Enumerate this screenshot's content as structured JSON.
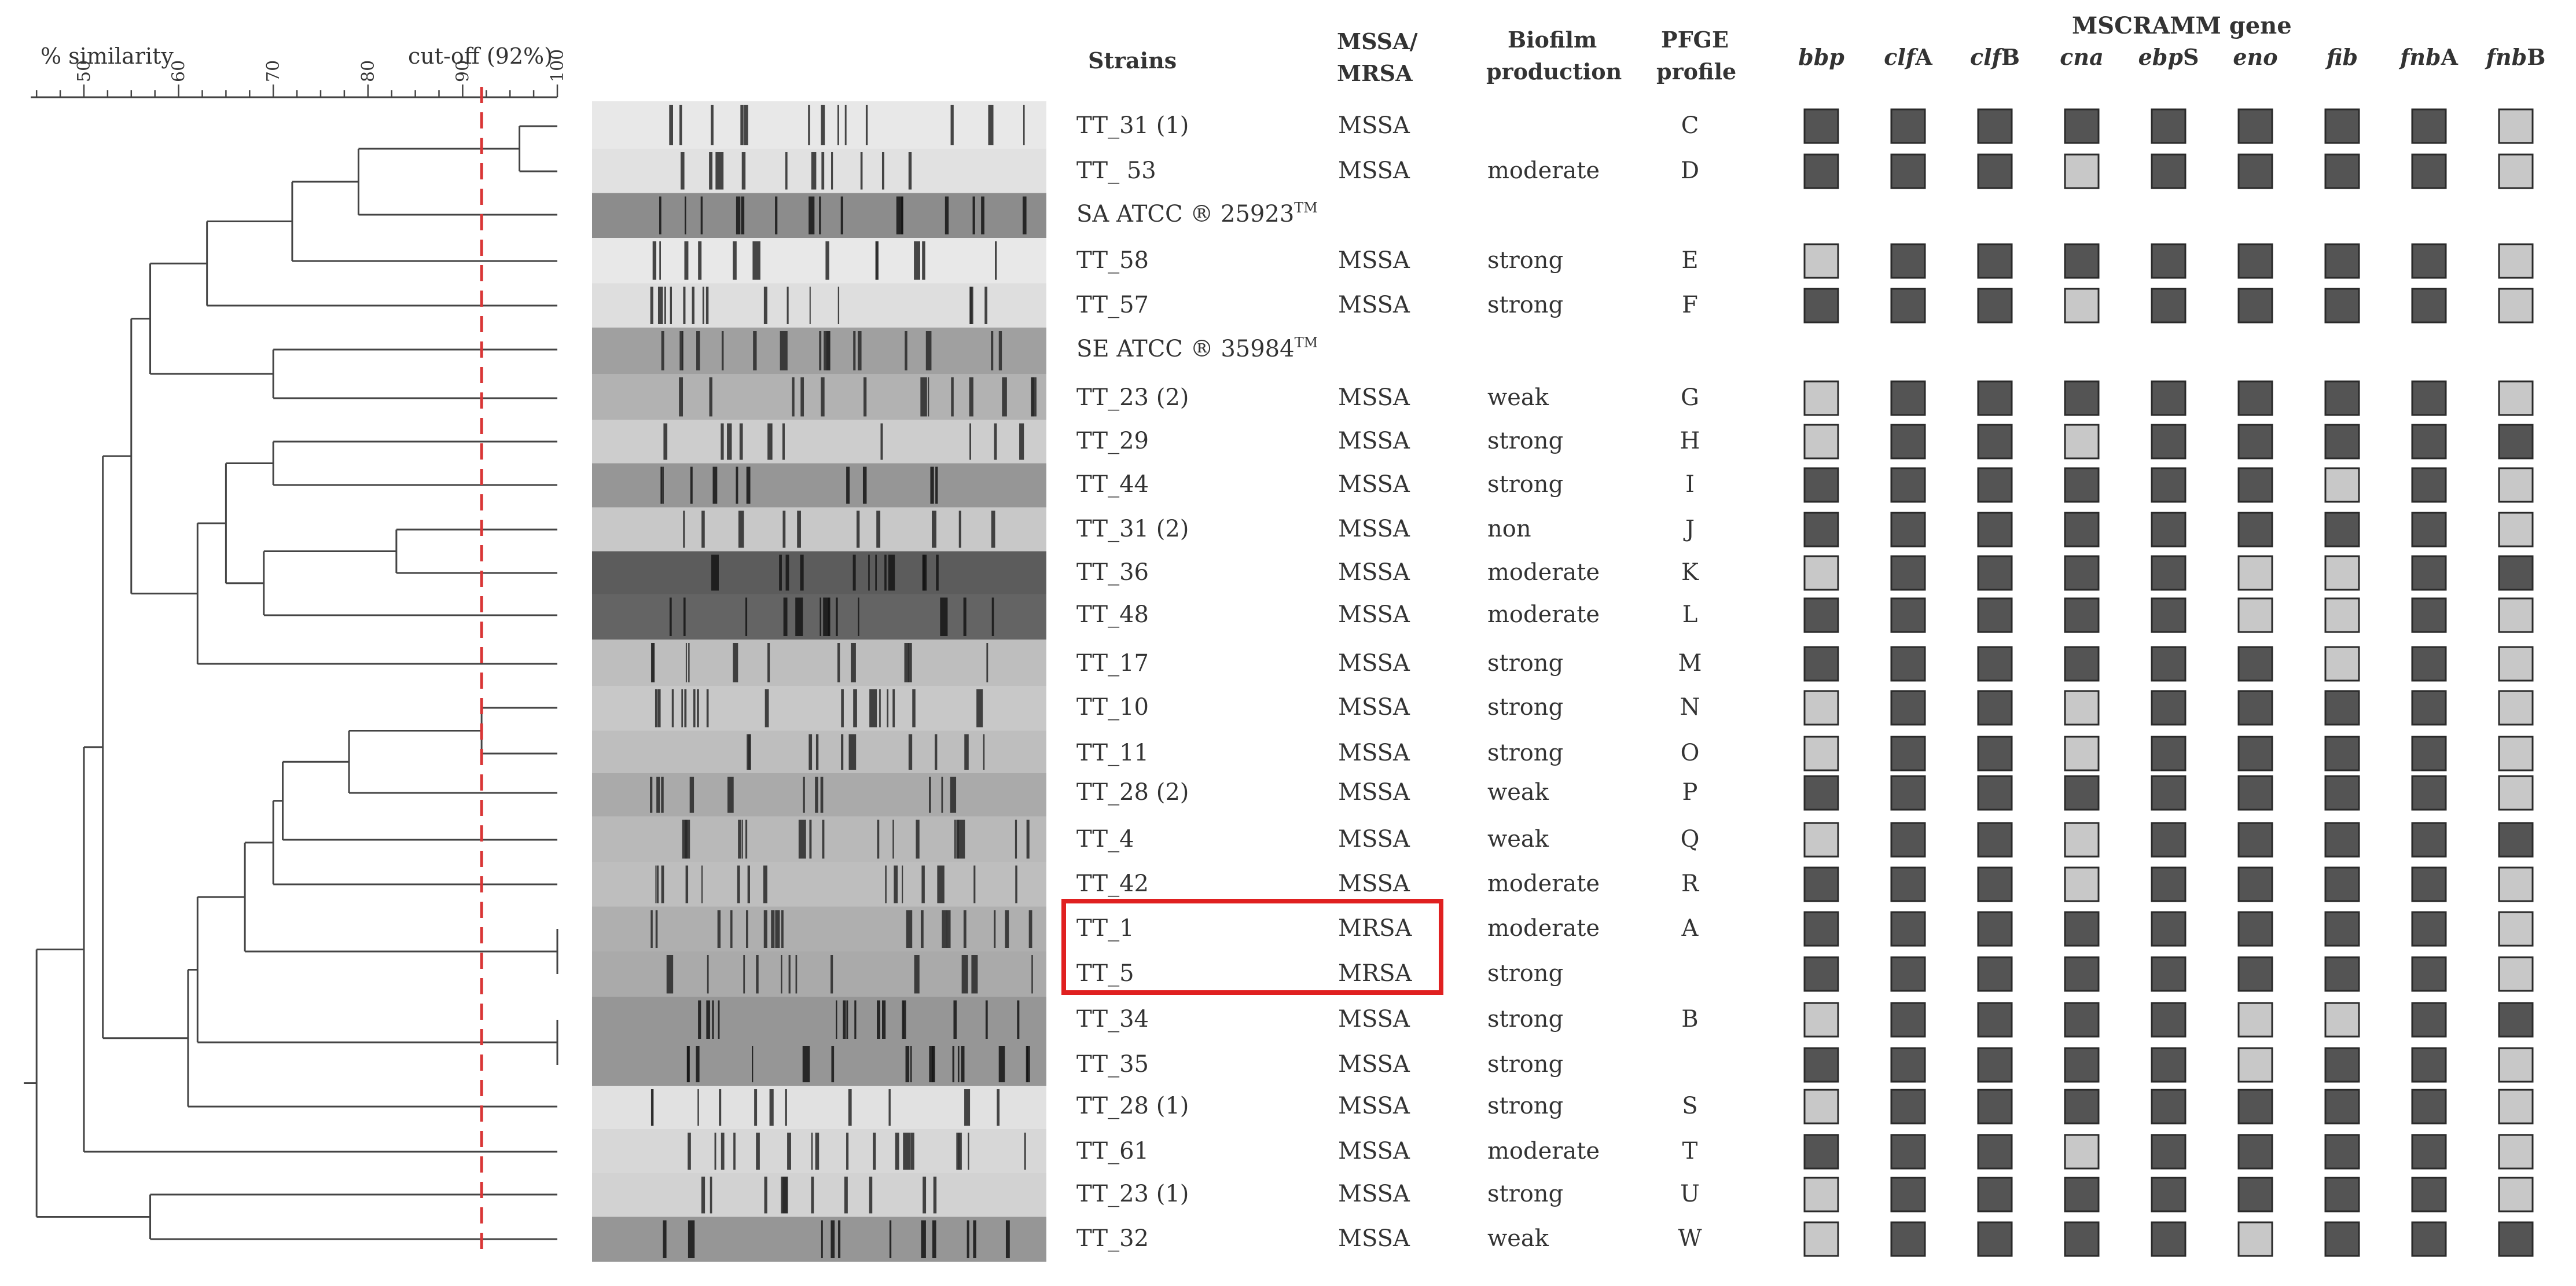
{
  "scale": {
    "label": "% similarity",
    "cutoff_label": "cut-off (92%)",
    "cutoff_value": 92,
    "min": 45,
    "max": 100,
    "ticks": [
      "50",
      "60",
      "70",
      "80",
      "90",
      "100"
    ]
  },
  "headers": {
    "strains": "Strains",
    "mssa_mrsa_1": "MSSA/",
    "mssa_mrsa_2": "MRSA",
    "biofilm_1": "Biofilm",
    "biofilm_2": "production",
    "pfge_1": "PFGE",
    "pfge_2": "profile",
    "mscramm": "MSCRAMM gene"
  },
  "genes": [
    {
      "italic": "bbp",
      "suffix": ""
    },
    {
      "italic": "clf",
      "suffix": "A"
    },
    {
      "italic": "clf",
      "suffix": "B"
    },
    {
      "italic": "cna",
      "suffix": ""
    },
    {
      "italic": "ebp",
      "suffix": "S"
    },
    {
      "italic": "eno",
      "suffix": ""
    },
    {
      "italic": "fib",
      "suffix": ""
    },
    {
      "italic": "fnb",
      "suffix": "A"
    },
    {
      "italic": "fnb",
      "suffix": "B"
    }
  ],
  "colors": {
    "present": "#545454",
    "absent": "#c8c8c8",
    "cutoff_line": "#d93636",
    "highlight_box": "#e02020",
    "dendrogram": "#444444"
  },
  "strains": [
    {
      "name": "TT_31 (1)",
      "type": "MSSA",
      "biofilm": "",
      "pfge": "C",
      "genes": [
        1,
        1,
        1,
        1,
        1,
        1,
        1,
        1,
        0
      ]
    },
    {
      "name": "TT_ 53",
      "type": "MSSA",
      "biofilm": "moderate",
      "pfge": "D",
      "genes": [
        1,
        1,
        1,
        0,
        1,
        1,
        1,
        1,
        0
      ]
    },
    {
      "name": "SA ATCC ® 25923",
      "sup": "TM",
      "type": "",
      "biofilm": "",
      "pfge": "",
      "genes": null
    },
    {
      "name": "TT_58",
      "type": "MSSA",
      "biofilm": "strong",
      "pfge": "E",
      "genes": [
        0,
        1,
        1,
        1,
        1,
        1,
        1,
        1,
        0
      ]
    },
    {
      "name": "TT_57",
      "type": "MSSA",
      "biofilm": "strong",
      "pfge": "F",
      "genes": [
        1,
        1,
        1,
        0,
        1,
        1,
        1,
        1,
        0
      ]
    },
    {
      "name": "SE ATCC ® 35984",
      "sup": "TM",
      "type": "",
      "biofilm": "",
      "pfge": "",
      "genes": null
    },
    {
      "name": "TT_23 (2)",
      "type": "MSSA",
      "biofilm": "weak",
      "pfge": "G",
      "genes": [
        0,
        1,
        1,
        1,
        1,
        1,
        1,
        1,
        0
      ]
    },
    {
      "name": "TT_29",
      "type": "MSSA",
      "biofilm": "strong",
      "pfge": "H",
      "genes": [
        0,
        1,
        1,
        0,
        1,
        1,
        1,
        1,
        1
      ]
    },
    {
      "name": "TT_44",
      "type": "MSSA",
      "biofilm": "strong",
      "pfge": "I",
      "genes": [
        1,
        1,
        1,
        1,
        1,
        1,
        0,
        1,
        0
      ]
    },
    {
      "name": "TT_31 (2)",
      "type": "MSSA",
      "biofilm": "non",
      "pfge": "J",
      "genes": [
        1,
        1,
        1,
        1,
        1,
        1,
        1,
        1,
        0
      ]
    },
    {
      "name": "TT_36",
      "type": "MSSA",
      "biofilm": "moderate",
      "pfge": "K",
      "genes": [
        0,
        1,
        1,
        1,
        1,
        0,
        0,
        1,
        1
      ]
    },
    {
      "name": "TT_48",
      "type": "MSSA",
      "biofilm": "moderate",
      "pfge": "L",
      "genes": [
        1,
        1,
        1,
        1,
        1,
        0,
        0,
        1,
        0
      ]
    },
    {
      "name": "TT_17",
      "type": "MSSA",
      "biofilm": "strong",
      "pfge": "M",
      "genes": [
        1,
        1,
        1,
        1,
        1,
        1,
        0,
        1,
        0
      ]
    },
    {
      "name": "TT_10",
      "type": "MSSA",
      "biofilm": "strong",
      "pfge": "N",
      "genes": [
        0,
        1,
        1,
        0,
        1,
        1,
        1,
        1,
        0
      ]
    },
    {
      "name": "TT_11",
      "type": "MSSA",
      "biofilm": "strong",
      "pfge": "O",
      "genes": [
        0,
        1,
        1,
        0,
        1,
        1,
        1,
        1,
        0
      ]
    },
    {
      "name": "TT_28 (2)",
      "type": "MSSA",
      "biofilm": "weak",
      "pfge": "P",
      "genes": [
        1,
        1,
        1,
        1,
        1,
        1,
        1,
        1,
        0
      ]
    },
    {
      "name": "TT_4",
      "type": "MSSA",
      "biofilm": "weak",
      "pfge": "Q",
      "genes": [
        0,
        1,
        1,
        0,
        1,
        1,
        1,
        1,
        1
      ]
    },
    {
      "name": "TT_42",
      "type": "MSSA",
      "biofilm": "moderate",
      "pfge": "R",
      "genes": [
        1,
        1,
        1,
        0,
        1,
        1,
        1,
        1,
        0
      ]
    },
    {
      "name": "TT_1",
      "type": "MRSA",
      "biofilm": "moderate",
      "pfge": "A",
      "genes": [
        1,
        1,
        1,
        1,
        1,
        1,
        1,
        1,
        0
      ]
    },
    {
      "name": "TT_5",
      "type": "MRSA",
      "biofilm": "strong",
      "pfge": "",
      "genes": [
        1,
        1,
        1,
        1,
        1,
        1,
        1,
        1,
        0
      ]
    },
    {
      "name": "TT_34",
      "type": "MSSA",
      "biofilm": "strong",
      "pfge": "B",
      "genes": [
        0,
        1,
        1,
        1,
        1,
        0,
        0,
        1,
        1
      ]
    },
    {
      "name": "TT_35",
      "type": "MSSA",
      "biofilm": "strong",
      "pfge": "",
      "genes": [
        1,
        1,
        1,
        1,
        1,
        0,
        1,
        1,
        0
      ]
    },
    {
      "name": "TT_28 (1)",
      "type": "MSSA",
      "biofilm": "strong",
      "pfge": "S",
      "genes": [
        0,
        1,
        1,
        1,
        1,
        1,
        1,
        1,
        0
      ]
    },
    {
      "name": "TT_61",
      "type": "MSSA",
      "biofilm": "moderate",
      "pfge": "T",
      "genes": [
        1,
        1,
        1,
        0,
        1,
        1,
        1,
        1,
        0
      ]
    },
    {
      "name": "TT_23 (1)",
      "type": "MSSA",
      "biofilm": "strong",
      "pfge": "U",
      "genes": [
        0,
        1,
        1,
        1,
        1,
        1,
        1,
        1,
        0
      ]
    },
    {
      "name": "TT_32",
      "type": "MSSA",
      "biofilm": "weak",
      "pfge": "W",
      "genes": [
        0,
        1,
        1,
        1,
        1,
        0,
        1,
        1,
        1
      ]
    }
  ],
  "dendrogram": {
    "nodes": [
      {
        "id": "n1",
        "a": 0,
        "b": 1,
        "sim": 96
      },
      {
        "id": "n2",
        "a": "n1",
        "b": 2,
        "sim": 79
      },
      {
        "id": "n3",
        "a": "n2",
        "b": 3,
        "sim": 72
      },
      {
        "id": "n4",
        "a": "n3",
        "b": 4,
        "sim": 63
      },
      {
        "id": "n5",
        "a": 5,
        "b": 6,
        "sim": 70
      },
      {
        "id": "n6",
        "a": "n4",
        "b": "n5",
        "sim": 57
      },
      {
        "id": "n7",
        "a": 7,
        "b": 8,
        "sim": 70
      },
      {
        "id": "n8",
        "a": 9,
        "b": 10,
        "sim": 83
      },
      {
        "id": "n9",
        "a": "n8",
        "b": 11,
        "sim": 69
      },
      {
        "id": "n10",
        "a": "n7",
        "b": "n9",
        "sim": 65
      },
      {
        "id": "n11",
        "a": "n10",
        "b": 12,
        "sim": 62
      },
      {
        "id": "n12",
        "a": "n6",
        "b": "n11",
        "sim": 55
      },
      {
        "id": "n13",
        "a": 13,
        "b": 14,
        "sim": 92
      },
      {
        "id": "n14",
        "a": "n13",
        "b": 15,
        "sim": 78
      },
      {
        "id": "n15",
        "a": "n14",
        "b": 16,
        "sim": 71
      },
      {
        "id": "n16",
        "a": "n15",
        "b": 17,
        "sim": 70
      },
      {
        "id": "n17",
        "a": 18,
        "b": 19,
        "sim": 100
      },
      {
        "id": "n18",
        "a": "n16",
        "b": "n17",
        "sim": 67
      },
      {
        "id": "n19",
        "a": 20,
        "b": 21,
        "sim": 100
      },
      {
        "id": "n20",
        "a": "n18",
        "b": "n19",
        "sim": 62
      },
      {
        "id": "n21",
        "a": "n20",
        "b": 22,
        "sim": 61
      },
      {
        "id": "n22",
        "a": "n12",
        "b": "n21",
        "sim": 52
      },
      {
        "id": "n23",
        "a": "n22",
        "b": 23,
        "sim": 50
      },
      {
        "id": "n24",
        "a": 24,
        "b": 25,
        "sim": 57
      },
      {
        "id": "n25",
        "a": "n23",
        "b": "n24",
        "sim": 45
      }
    ]
  }
}
